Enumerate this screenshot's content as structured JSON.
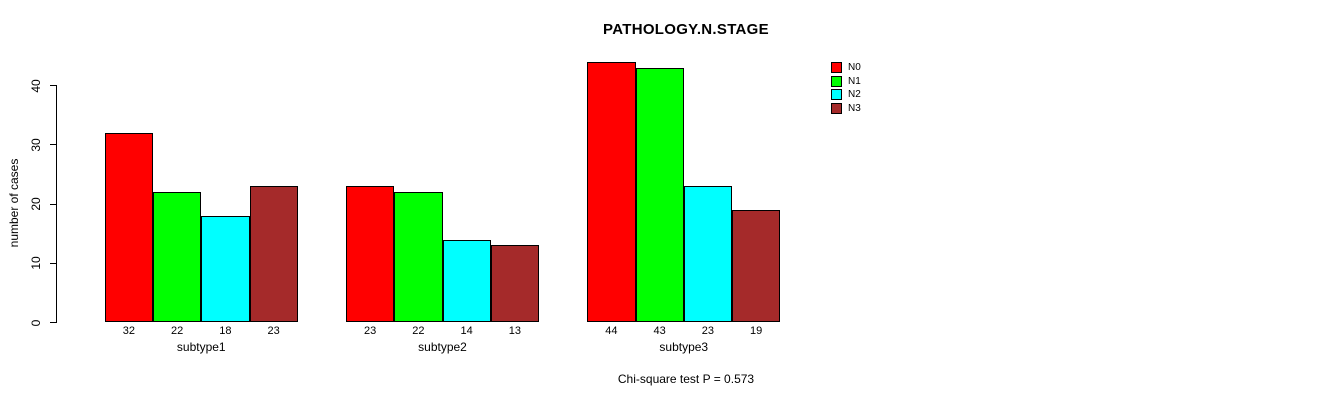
{
  "title": "PATHOLOGY.N.STAGE",
  "footer": "Chi-square test P = 0.573",
  "chart_data": {
    "type": "bar",
    "grouped": true,
    "title": "PATHOLOGY.N.STAGE",
    "categories": [
      "subtype1",
      "subtype2",
      "subtype3"
    ],
    "series": [
      {
        "name": "N0",
        "color": "#FF0000",
        "values": [
          32,
          23,
          44
        ]
      },
      {
        "name": "N1",
        "color": "#00FF00",
        "values": [
          22,
          22,
          43
        ]
      },
      {
        "name": "N2",
        "color": "#00FFFF",
        "values": [
          18,
          14,
          23
        ]
      },
      {
        "name": "N3",
        "color": "#A52A2A",
        "values": [
          23,
          13,
          19
        ]
      }
    ],
    "xlabel": "",
    "ylabel": "number of cases",
    "yticks": [
      0,
      10,
      20,
      30,
      40
    ],
    "ylim": [
      0,
      44
    ],
    "bar_value_labels": true,
    "grid": false,
    "legend_position": "top-right",
    "annotation": "Chi-square test P = 0.573"
  }
}
